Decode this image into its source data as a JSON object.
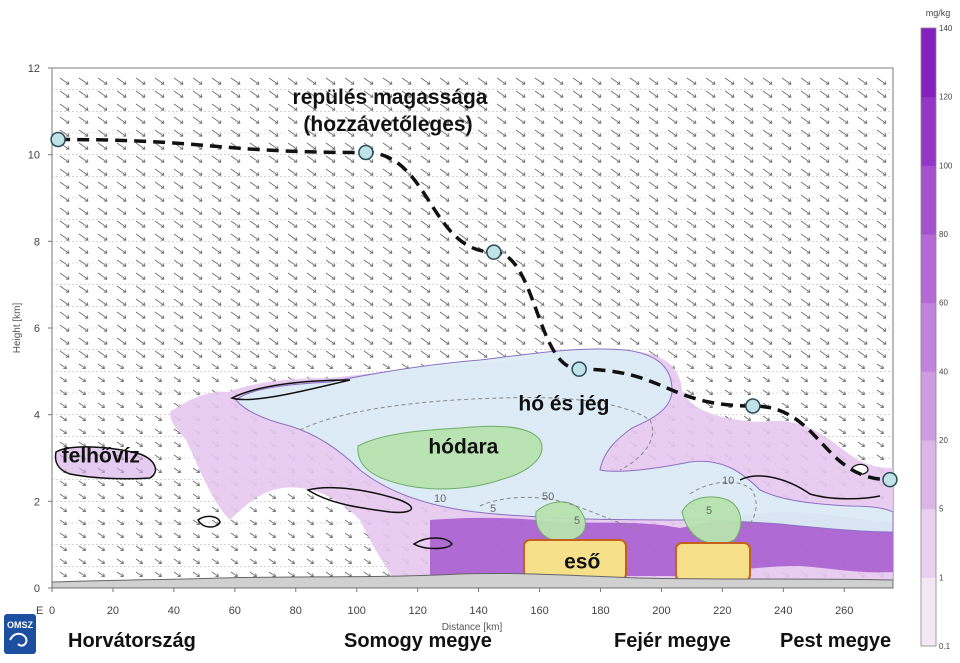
{
  "chart_data": {
    "type": "cross-section",
    "xlabel": "Distance [km]",
    "ylabel": "Height [km]",
    "xlim": [
      0,
      276
    ],
    "ylim": [
      0,
      12
    ],
    "x_ticks": [
      0,
      20,
      40,
      60,
      80,
      100,
      120,
      140,
      160,
      180,
      200,
      220,
      240,
      260
    ],
    "y_ticks": [
      0,
      2,
      4,
      6,
      8,
      10,
      12
    ],
    "x_origin_label": "E",
    "flight_path": {
      "label_line1": "repülés magassága",
      "label_line2": "(hozzávetőleges)",
      "points": [
        {
          "x": 2,
          "y": 10.35
        },
        {
          "x": 103,
          "y": 10.05
        },
        {
          "x": 145,
          "y": 7.75
        },
        {
          "x": 173,
          "y": 5.05
        },
        {
          "x": 230,
          "y": 4.2
        },
        {
          "x": 275,
          "y": 2.5
        }
      ]
    },
    "annotations": [
      {
        "text": "hó és jég",
        "x": 168,
        "y": 4.1
      },
      {
        "text": "hódara",
        "x": 135,
        "y": 3.1
      },
      {
        "text": "felhővíz",
        "x": 16,
        "y": 2.9
      },
      {
        "text": "eső",
        "x": 174,
        "y": 0.45
      }
    ],
    "colorbar": {
      "unit": "mg/kg",
      "levels": [
        "0.1",
        "1",
        "5",
        "20",
        "40",
        "60",
        "80",
        "100",
        "120",
        "140"
      ],
      "colors": [
        "#f4e8f5",
        "#e9cfee",
        "#ddb6e8",
        "#cf9ce2",
        "#c283dc",
        "#b36ad5",
        "#a351ce",
        "#9338c6",
        "#8420be"
      ]
    },
    "contour_labels": [
      "10",
      "5",
      "50",
      "5",
      "5",
      "10"
    ],
    "regions": [
      "Horvátország",
      "Somogy megye",
      "Fejér megye",
      "Pest megye"
    ],
    "logo": "OMSZ"
  }
}
